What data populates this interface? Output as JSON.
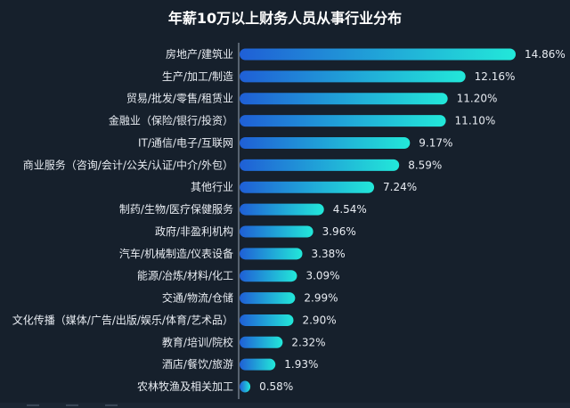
{
  "chart_data": {
    "type": "bar",
    "orientation": "horizontal",
    "title": "年薪10万以上财务人员从事行业分布",
    "categories": [
      "房地产/建筑业",
      "生产/加工/制造",
      "贸易/批发/零售/租赁业",
      "金融业（保险/银行/投资）",
      "IT/通信/电子/互联网",
      "商业服务（咨询/会计/公关/认证/中介/外包）",
      "其他行业",
      "制药/生物/医疗保健服务",
      "政府/非盈利机构",
      "汽车/机械制造/仪表设备",
      "能源/冶炼/材料/化工",
      "交通/物流/仓储",
      "文化传播（媒体/广告/出版/娱乐/体育/艺术品）",
      "教育/培训/院校",
      "酒店/餐饮/旅游",
      "农林牧渔及相关加工"
    ],
    "values": [
      14.86,
      12.16,
      11.2,
      11.1,
      9.17,
      8.59,
      7.24,
      4.54,
      3.96,
      3.38,
      3.09,
      2.99,
      2.9,
      2.32,
      1.93,
      0.58
    ],
    "labels": [
      "14.86%",
      "12.16%",
      "11.20%",
      "11.10%",
      "9.17%",
      "8.59%",
      "7.24%",
      "4.54%",
      "3.96%",
      "3.38%",
      "3.09%",
      "2.99%",
      "2.90%",
      "2.32%",
      "1.93%",
      "0.58%"
    ],
    "xlim": [
      0,
      14.86
    ],
    "grid": false,
    "legend": "none",
    "colors": {
      "start": "#1f5fd6",
      "end": "#22e8d9",
      "text": "#e8ecf2",
      "background": "#16202c",
      "axis": "#9aa6b4"
    }
  }
}
